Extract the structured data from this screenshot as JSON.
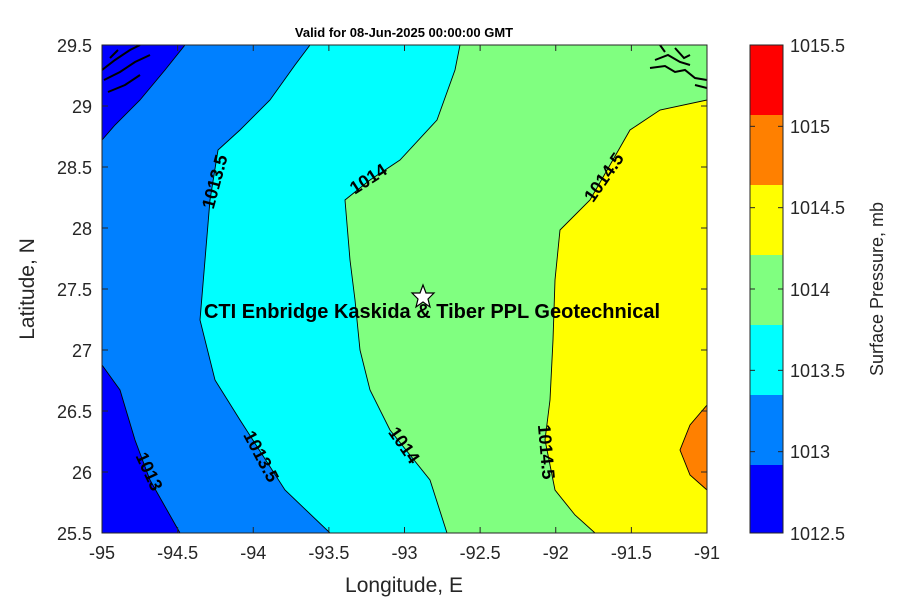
{
  "title": "Valid for 08-Jun-2025 00:00:00 GMT",
  "x_axis": {
    "label": "Longitude, E",
    "ticks": [
      "-95",
      "-94.5",
      "-94",
      "-93.5",
      "-93",
      "-92.5",
      "-92",
      "-91.5",
      "-91"
    ]
  },
  "y_axis": {
    "label": "Latitude, N",
    "ticks": [
      "29.5",
      "29",
      "28.5",
      "28",
      "27.5",
      "27",
      "26.5",
      "26",
      "25.5"
    ]
  },
  "site": {
    "label": "CTI Enbridge  Kaskida & Tiber PPL Geotechnical",
    "marker_icon": "star-icon"
  },
  "contour_labels": [
    "1013.5",
    "1014",
    "1014.5",
    "1013.5",
    "1014",
    "1014.5",
    "1013"
  ],
  "colorbar": {
    "label": "Surface Pressure, mb",
    "levels": [
      "1015.5",
      "1015",
      "1014.5",
      "1014",
      "1013.5",
      "1013",
      "1012.5"
    ],
    "colors": [
      "#ff0000",
      "#ff8000",
      "#ffff00",
      "#80ff80",
      "#00ffff",
      "#0080ff",
      "#0000ff"
    ]
  },
  "chart_data": {
    "type": "contour-map",
    "title": "Valid for 08-Jun-2025 00:00:00 GMT",
    "xlabel": "Longitude, E",
    "ylabel": "Latitude, N",
    "xlim": [
      -95,
      -91
    ],
    "ylim": [
      25.5,
      29.5
    ],
    "colorbar_label": "Surface Pressure, mb",
    "colorbar_range": [
      1012.5,
      1015.5
    ],
    "contour_levels": [
      1013,
      1013.5,
      1014,
      1014.5,
      1015
    ],
    "site": {
      "lon": -92.88,
      "lat": 27.43
    },
    "annotation": "CTI Enbridge  Kaskida & Tiber PPL Geotechnical"
  }
}
